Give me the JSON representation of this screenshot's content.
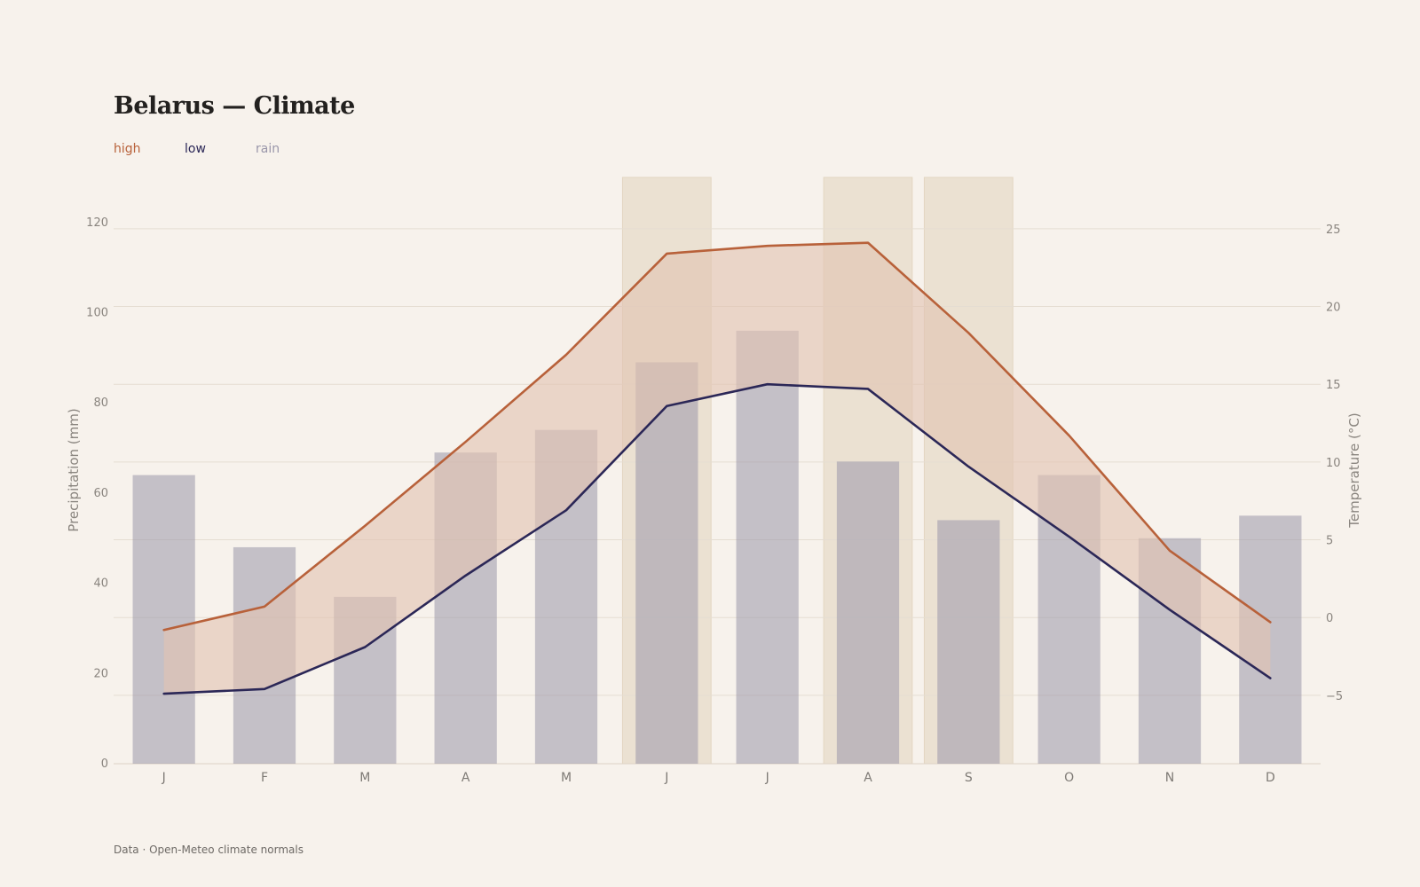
{
  "title": "Belarus — Climate",
  "source": "Data · Open-Meteo climate normals",
  "colors": {
    "high": "#b8613a",
    "low": "#2b2757",
    "rain": "#9a97aa",
    "band_fill": "#e2c3b2",
    "highlight": "#ebe1d2",
    "grid": "#e5ddd2",
    "text_muted": "#8a857f"
  },
  "chart_data": {
    "type": "bar+line",
    "categories": [
      "J",
      "F",
      "M",
      "A",
      "M",
      "J",
      "J",
      "A",
      "S",
      "O",
      "N",
      "D"
    ],
    "precipitation": {
      "name": "rain",
      "axis": "left",
      "ylabel": "Precipitation (mm)",
      "ylim": [
        0,
        130
      ],
      "ticks": [
        0,
        20,
        40,
        60,
        80,
        100,
        120
      ],
      "values": [
        64,
        48,
        37,
        69,
        74,
        89,
        96,
        67,
        54,
        64,
        50,
        55
      ]
    },
    "temperature": {
      "axis": "right",
      "ylabel": "Temperature (°C)",
      "ylim": [
        -9.4,
        28.3
      ],
      "ticks": [
        -5,
        0,
        5,
        10,
        15,
        20,
        25
      ],
      "tick_labels": [
        "−5",
        "0",
        "5",
        "10",
        "15",
        "20",
        "25"
      ],
      "series": [
        {
          "name": "high",
          "values": [
            -0.8,
            0.7,
            5.9,
            11.3,
            16.9,
            23.4,
            23.9,
            24.1,
            18.3,
            11.7,
            4.3,
            -0.3
          ]
        },
        {
          "name": "low",
          "values": [
            -4.9,
            -4.6,
            -1.9,
            2.7,
            6.9,
            13.6,
            15.0,
            14.7,
            9.7,
            5.2,
            0.5,
            -3.9
          ]
        }
      ]
    },
    "highlight_months": [
      5,
      7,
      8
    ],
    "grid": true,
    "legend": "top-left"
  }
}
